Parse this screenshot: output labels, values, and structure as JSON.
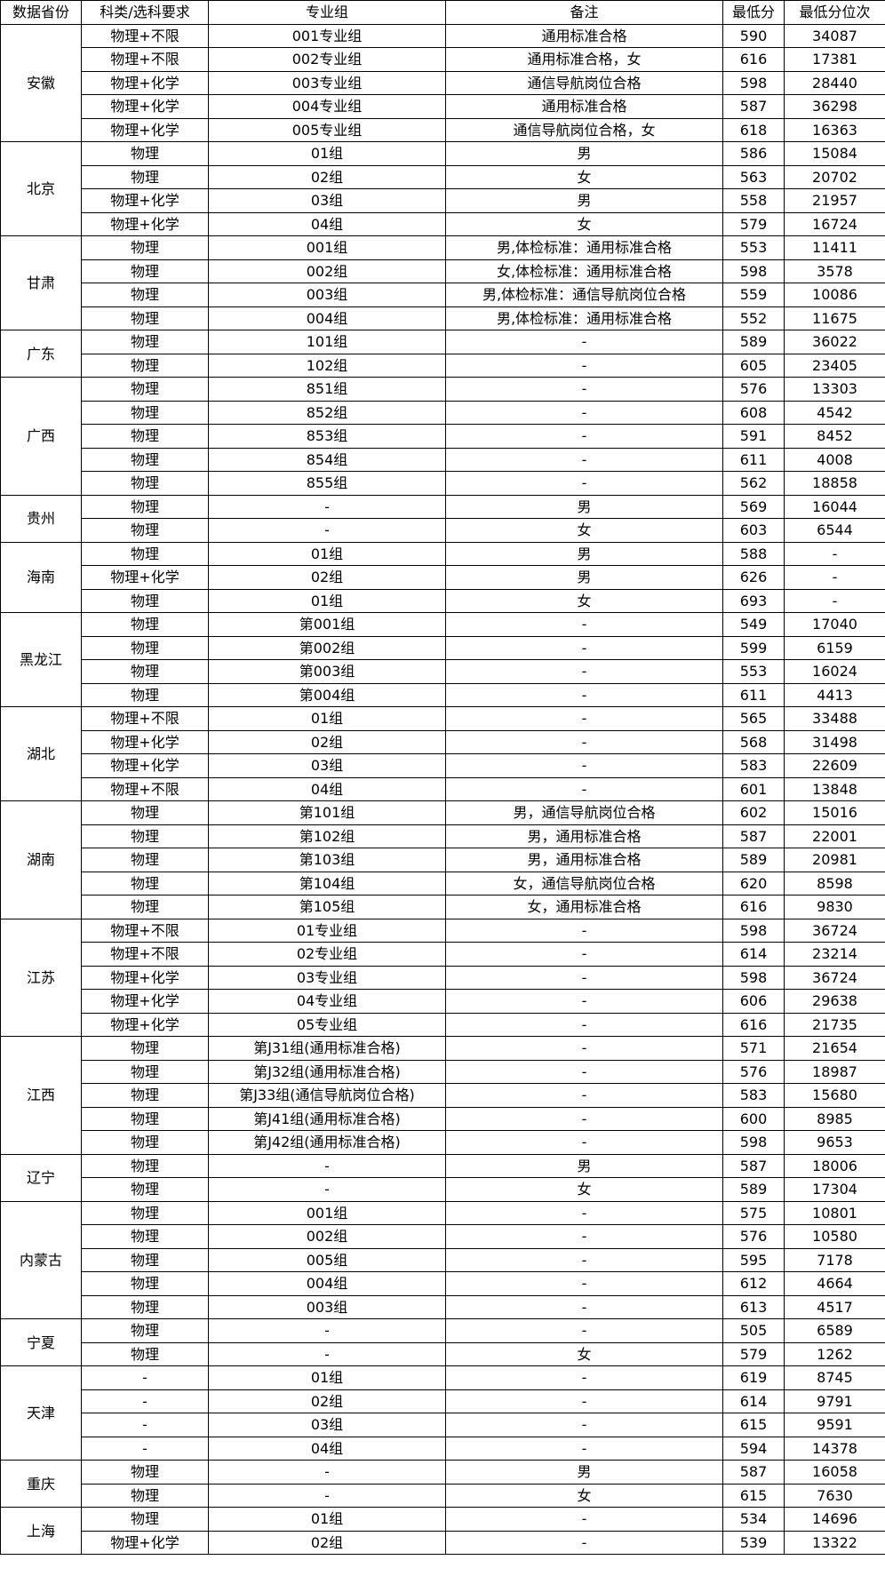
{
  "headers": [
    "数据省份",
    "科类/选科要求",
    "专业组",
    "备注",
    "最低分",
    "最低分位次"
  ],
  "groups": [
    {
      "province": "安徽",
      "rows": [
        [
          "物理+不限",
          "001专业组",
          "通用标准合格",
          "590",
          "34087"
        ],
        [
          "物理+不限",
          "002专业组",
          "通用标准合格，女",
          "616",
          "17381"
        ],
        [
          "物理+化学",
          "003专业组",
          "通信导航岗位合格",
          "598",
          "28440"
        ],
        [
          "物理+化学",
          "004专业组",
          "通用标准合格",
          "587",
          "36298"
        ],
        [
          "物理+化学",
          "005专业组",
          "通信导航岗位合格，女",
          "618",
          "16363"
        ]
      ]
    },
    {
      "province": "北京",
      "rows": [
        [
          "物理",
          "01组",
          "男",
          "586",
          "15084"
        ],
        [
          "物理",
          "02组",
          "女",
          "563",
          "20702"
        ],
        [
          "物理+化学",
          "03组",
          "男",
          "558",
          "21957"
        ],
        [
          "物理+化学",
          "04组",
          "女",
          "579",
          "16724"
        ]
      ]
    },
    {
      "province": "甘肃",
      "rows": [
        [
          "物理",
          "001组",
          "男,体检标准：通用标准合格",
          "553",
          "11411"
        ],
        [
          "物理",
          "002组",
          "女,体检标准：通用标准合格",
          "598",
          "3578"
        ],
        [
          "物理",
          "003组",
          "男,体检标准：通信导航岗位合格",
          "559",
          "10086"
        ],
        [
          "物理",
          "004组",
          "男,体检标准：通用标准合格",
          "552",
          "11675"
        ]
      ]
    },
    {
      "province": "广东",
      "rows": [
        [
          "物理",
          "101组",
          "-",
          "589",
          "36022"
        ],
        [
          "物理",
          "102组",
          "-",
          "605",
          "23405"
        ]
      ]
    },
    {
      "province": "广西",
      "rows": [
        [
          "物理",
          "851组",
          "-",
          "576",
          "13303"
        ],
        [
          "物理",
          "852组",
          "-",
          "608",
          "4542"
        ],
        [
          "物理",
          "853组",
          "-",
          "591",
          "8452"
        ],
        [
          "物理",
          "854组",
          "-",
          "611",
          "4008"
        ],
        [
          "物理",
          "855组",
          "-",
          "562",
          "18858"
        ]
      ]
    },
    {
      "province": "贵州",
      "rows": [
        [
          "物理",
          "-",
          "男",
          "569",
          "16044"
        ],
        [
          "物理",
          "-",
          "女",
          "603",
          "6544"
        ]
      ]
    },
    {
      "province": "海南",
      "rows": [
        [
          "物理",
          "01组",
          "男",
          "588",
          "-"
        ],
        [
          "物理+化学",
          "02组",
          "男",
          "626",
          "-"
        ],
        [
          "物理",
          "01组",
          "女",
          "693",
          "-"
        ]
      ]
    },
    {
      "province": "黑龙江",
      "rows": [
        [
          "物理",
          "第001组",
          "-",
          "549",
          "17040"
        ],
        [
          "物理",
          "第002组",
          "-",
          "599",
          "6159"
        ],
        [
          "物理",
          "第003组",
          "-",
          "553",
          "16024"
        ],
        [
          "物理",
          "第004组",
          "-",
          "611",
          "4413"
        ]
      ]
    },
    {
      "province": "湖北",
      "rows": [
        [
          "物理+不限",
          "01组",
          "-",
          "565",
          "33488"
        ],
        [
          "物理+化学",
          "02组",
          "-",
          "568",
          "31498"
        ],
        [
          "物理+化学",
          "03组",
          "-",
          "583",
          "22609"
        ],
        [
          "物理+不限",
          "04组",
          "-",
          "601",
          "13848"
        ]
      ]
    },
    {
      "province": "湖南",
      "rows": [
        [
          "物理",
          "第101组",
          "男，通信导航岗位合格",
          "602",
          "15016"
        ],
        [
          "物理",
          "第102组",
          "男，通用标准合格",
          "587",
          "22001"
        ],
        [
          "物理",
          "第103组",
          "男，通用标准合格",
          "589",
          "20981"
        ],
        [
          "物理",
          "第104组",
          "女，通信导航岗位合格",
          "620",
          "8598"
        ],
        [
          "物理",
          "第105组",
          "女，通用标准合格",
          "616",
          "9830"
        ]
      ]
    },
    {
      "province": "江苏",
      "rows": [
        [
          "物理+不限",
          "01专业组",
          "-",
          "598",
          "36724"
        ],
        [
          "物理+不限",
          "02专业组",
          "-",
          "614",
          "23214"
        ],
        [
          "物理+化学",
          "03专业组",
          "-",
          "598",
          "36724"
        ],
        [
          "物理+化学",
          "04专业组",
          "-",
          "606",
          "29638"
        ],
        [
          "物理+化学",
          "05专业组",
          "-",
          "616",
          "21735"
        ]
      ]
    },
    {
      "province": "江西",
      "rows": [
        [
          "物理",
          "第J31组(通用标准合格)",
          "-",
          "571",
          "21654"
        ],
        [
          "物理",
          "第J32组(通用标准合格)",
          "-",
          "576",
          "18987"
        ],
        [
          "物理",
          "第J33组(通信导航岗位合格)",
          "-",
          "583",
          "15680"
        ],
        [
          "物理",
          "第J41组(通用标准合格)",
          "-",
          "600",
          "8985"
        ],
        [
          "物理",
          "第J42组(通用标准合格)",
          "-",
          "598",
          "9653"
        ]
      ]
    },
    {
      "province": "辽宁",
      "rows": [
        [
          "物理",
          "-",
          "男",
          "587",
          "18006"
        ],
        [
          "物理",
          "-",
          "女",
          "589",
          "17304"
        ]
      ]
    },
    {
      "province": "内蒙古",
      "rows": [
        [
          "物理",
          "001组",
          "-",
          "575",
          "10801"
        ],
        [
          "物理",
          "002组",
          "-",
          "576",
          "10580"
        ],
        [
          "物理",
          "005组",
          "-",
          "595",
          "7178"
        ],
        [
          "物理",
          "004组",
          "-",
          "612",
          "4664"
        ],
        [
          "物理",
          "003组",
          "-",
          "613",
          "4517"
        ]
      ]
    },
    {
      "province": "宁夏",
      "rows": [
        [
          "物理",
          "-",
          "-",
          "505",
          "6589"
        ],
        [
          "物理",
          "-",
          "女",
          "579",
          "1262"
        ]
      ]
    },
    {
      "province": "天津",
      "rows": [
        [
          "-",
          "01组",
          "-",
          "619",
          "8745"
        ],
        [
          "-",
          "02组",
          "-",
          "614",
          "9791"
        ],
        [
          "-",
          "03组",
          "-",
          "615",
          "9591"
        ],
        [
          "-",
          "04组",
          "-",
          "594",
          "14378"
        ]
      ]
    },
    {
      "province": "重庆",
      "rows": [
        [
          "物理",
          "-",
          "男",
          "587",
          "16058"
        ],
        [
          "物理",
          "-",
          "女",
          "615",
          "7630"
        ]
      ]
    },
    {
      "province": "上海",
      "rows": [
        [
          "物理",
          "01组",
          "-",
          "534",
          "14696"
        ],
        [
          "物理+化学",
          "02组",
          "-",
          "539",
          "13322"
        ]
      ]
    }
  ]
}
